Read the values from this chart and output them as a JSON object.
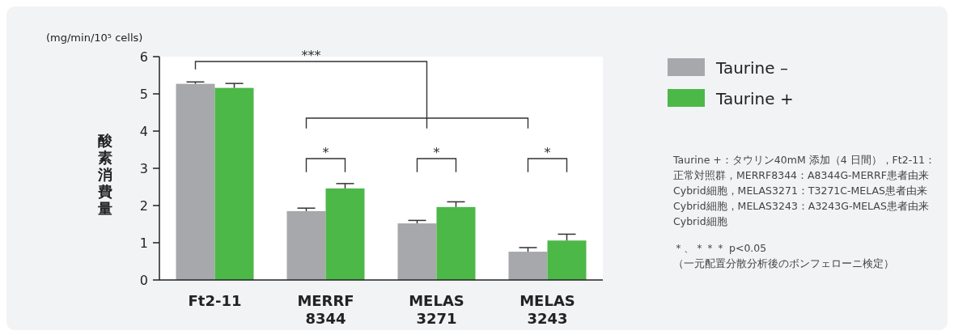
{
  "chart_data": {
    "type": "bar",
    "ylabel": "酸素消費量",
    "categories": [
      "Ft2-11",
      "MERRF 8344",
      "MELAS 3271",
      "MELAS 3243"
    ],
    "series": [
      {
        "name": "Taurine –",
        "color": "#a7a8ab",
        "values": [
          5.27,
          1.85,
          1.52,
          0.76
        ],
        "errors": [
          [
            5.27,
            5.32
          ],
          [
            1.85,
            1.93
          ],
          [
            1.52,
            1.6
          ],
          [
            0.76,
            0.87
          ]
        ]
      },
      {
        "name": "Taurine +",
        "color": "#4cb848",
        "values": [
          5.16,
          2.46,
          1.96,
          1.06
        ],
        "errors": [
          [
            5.16,
            5.28
          ],
          [
            2.46,
            2.59
          ],
          [
            1.96,
            2.1
          ],
          [
            1.06,
            1.23
          ]
        ]
      }
    ],
    "ylim": [
      0,
      6
    ],
    "yticks": [
      0,
      1,
      2,
      3,
      4,
      5,
      6
    ],
    "legend": "right",
    "annotations": [
      "(mg/min/10⁵ cells)",
      "***",
      "*",
      "*",
      "*",
      "Taurine +：タウリン40mM 添加（4 日間），Ft2-11：正常対照群，MERRF8344：A8344G-MERRF患者由来Cybrid細胞，MELAS3271：T3271C-MELAS患者由来Cybrid細胞，MELAS3243：A3243G-MELAS患者由来Cybrid細胞",
      "＊、＊＊＊ p<0.05",
      "（一元配置分散分析後のボンフェローニ検定）"
    ]
  }
}
